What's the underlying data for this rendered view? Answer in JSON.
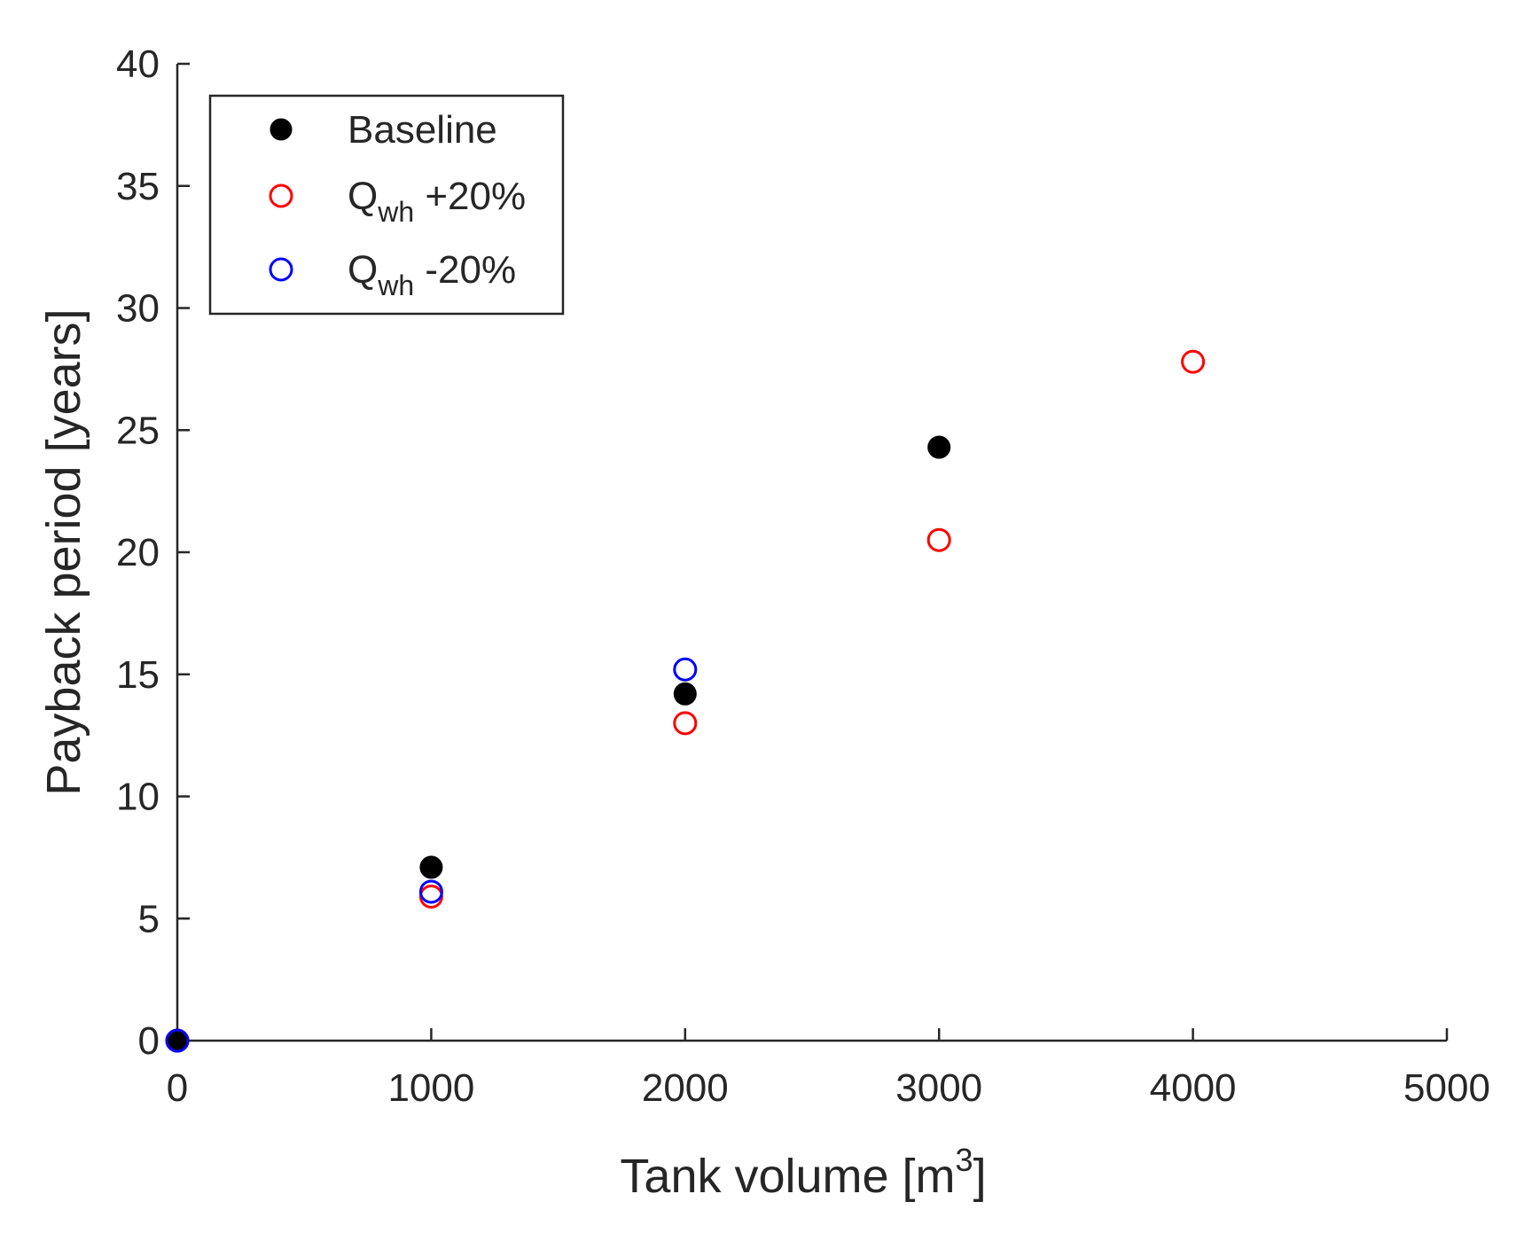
{
  "chart_data": {
    "type": "scatter",
    "title": "",
    "xlabel": "Tank volume [m",
    "xlabel_superscript": "3",
    "xlabel_suffix": "]",
    "ylabel": "Payback period [years]",
    "xlim": [
      0,
      5000
    ],
    "ylim": [
      0,
      40
    ],
    "xticks": [
      0,
      1000,
      2000,
      3000,
      4000,
      5000
    ],
    "yticks": [
      0,
      5,
      10,
      15,
      20,
      25,
      30,
      35,
      40
    ],
    "grid": false,
    "legend_position": "top-left",
    "series": [
      {
        "name": "Baseline",
        "legend_label": "Baseline",
        "marker": "filled-circle",
        "color": "#000000",
        "x": [
          0,
          1000,
          2000,
          3000
        ],
        "y": [
          0,
          7.1,
          14.2,
          24.3
        ]
      },
      {
        "name": "Q_wh +20%",
        "legend_label": "Q",
        "legend_subscript": "wh",
        "legend_suffix": " +20%",
        "marker": "open-circle",
        "color": "#ff0000",
        "x": [
          0,
          1000,
          2000,
          3000,
          4000
        ],
        "y": [
          0,
          5.9,
          13.0,
          20.5,
          27.8
        ]
      },
      {
        "name": "Q_wh -20%",
        "legend_label": "Q",
        "legend_subscript": "wh",
        "legend_suffix": " -20%",
        "marker": "open-circle",
        "color": "#0000ff",
        "x": [
          0,
          1000,
          2000
        ],
        "y": [
          0,
          6.1,
          15.2
        ]
      }
    ]
  }
}
